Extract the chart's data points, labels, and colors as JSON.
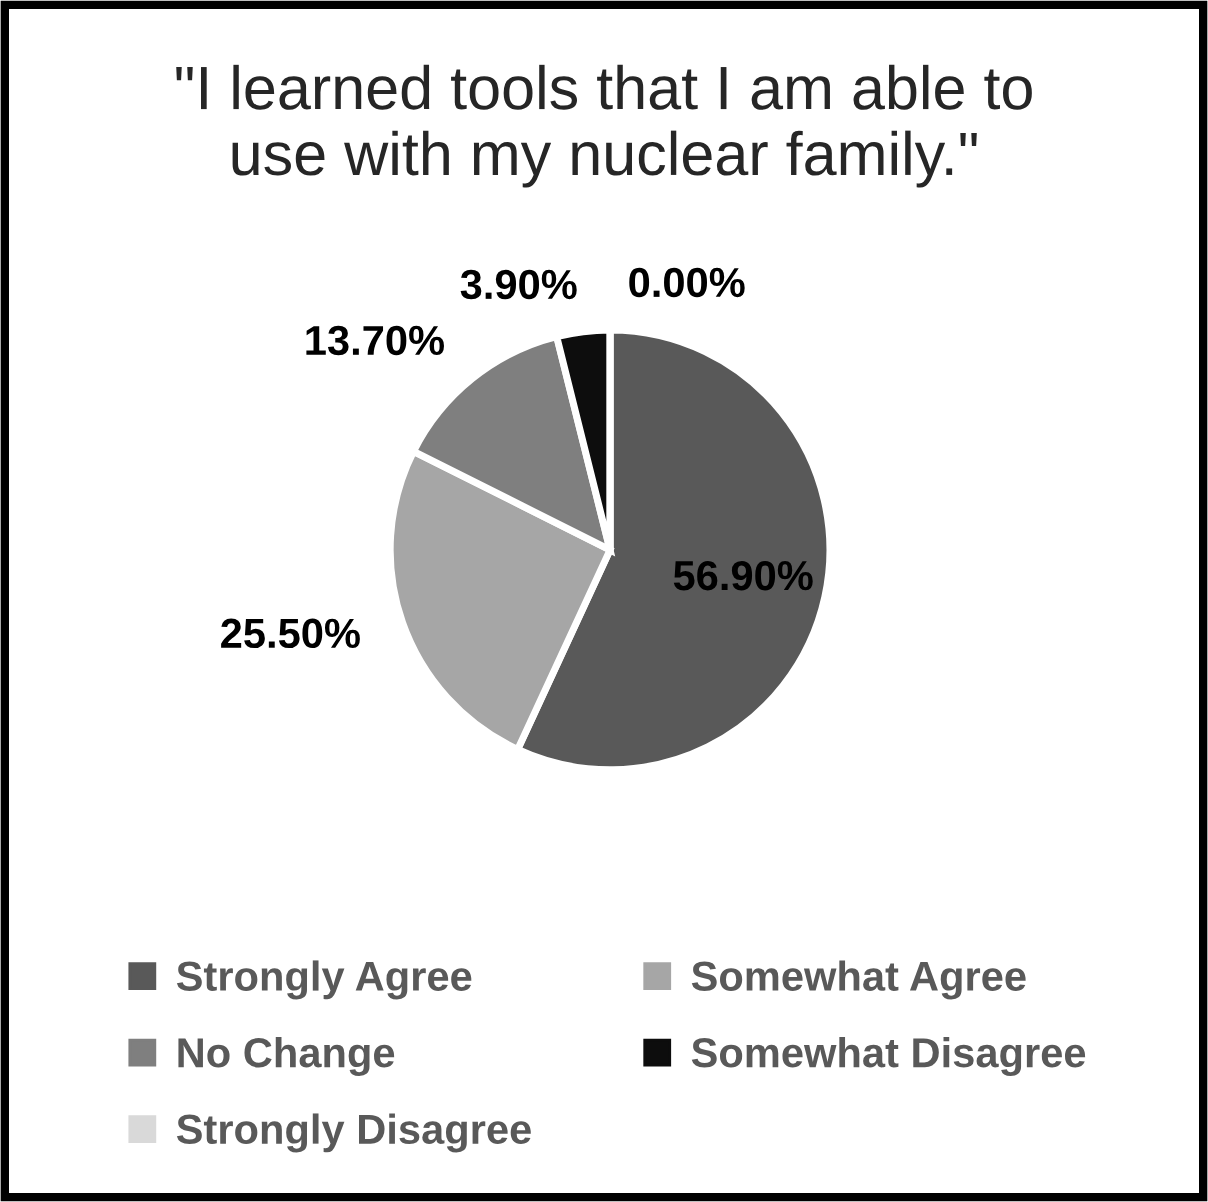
{
  "chart_data": {
    "type": "pie",
    "title": "\"I learned tools that I am able to use with my nuclear family.\"",
    "categories": [
      "Strongly Agree",
      "Somewhat Agree",
      "No Change",
      "Somewhat Disagree",
      "Strongly Disagree"
    ],
    "values": [
      56.9,
      25.5,
      13.7,
      3.9,
      0.0
    ],
    "colors": [
      "#595959",
      "#a6a6a6",
      "#7f7f7f",
      "#0d0d0d",
      "#d9d9d9"
    ],
    "value_labels": [
      "56.90%",
      "25.50%",
      "13.70%",
      "3.90%",
      "0.00%"
    ],
    "legend": "bottom"
  }
}
